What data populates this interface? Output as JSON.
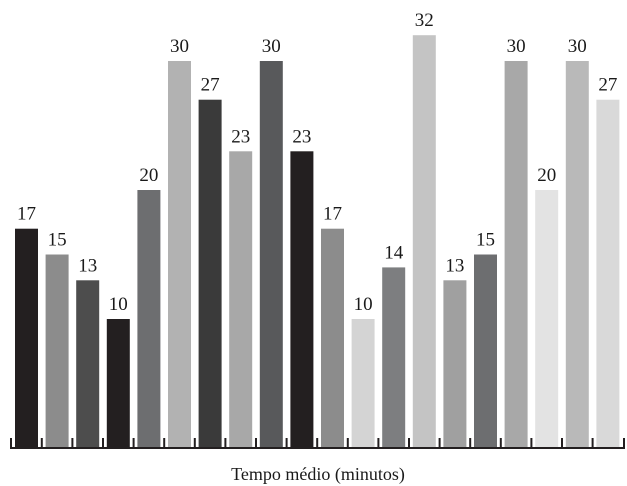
{
  "chart_data": {
    "type": "bar",
    "xlabel": "Tempo médio (minutos)",
    "ylabel": "",
    "title": "",
    "ylim": [
      0,
      36
    ],
    "grid": false,
    "values": [
      17,
      15,
      13,
      10,
      20,
      30,
      27,
      23,
      30,
      23,
      17,
      10,
      14,
      32,
      13,
      15,
      30,
      20,
      30,
      27
    ],
    "colors": [
      "#231f20",
      "#8c8c8c",
      "#4d4d4d",
      "#231f20",
      "#6d6e70",
      "#b2b2b2",
      "#3a3a3a",
      "#a8a8a8",
      "#58595b",
      "#231f20",
      "#8c8c8c",
      "#d4d4d4",
      "#7d7e80",
      "#c4c4c4",
      "#a0a0a0",
      "#6d6e70",
      "#a8a8a8",
      "#e3e3e3",
      "#b9b9b9",
      "#d9d9d9"
    ]
  }
}
